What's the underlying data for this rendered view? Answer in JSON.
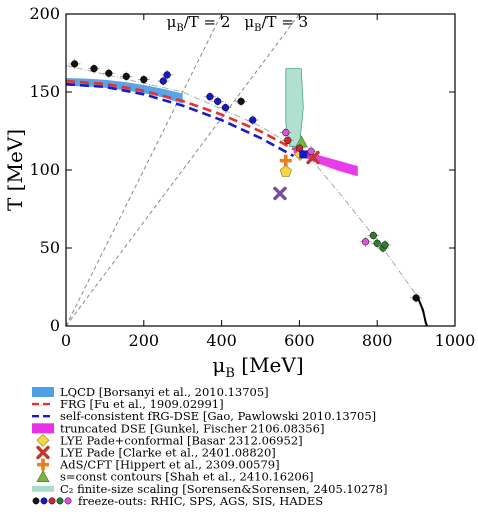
{
  "chart_data": {
    "type": "scatter",
    "xlabel_main": "μ",
    "xlabel_sub": "B",
    "xlabel_unit": " [MeV]",
    "ylabel": "T [MeV]",
    "xlim": [
      0,
      1000
    ],
    "ylim": [
      0,
      200
    ],
    "xticks": [
      "0",
      "200",
      "400",
      "600",
      "800",
      "1000"
    ],
    "yticks": [
      "0",
      "50",
      "100",
      "150",
      "200"
    ],
    "guide_lines": [
      {
        "main": "μ",
        "sub": "B",
        "rest": "/T = 2",
        "ratio": 2
      },
      {
        "main": "μ",
        "sub": "B",
        "rest": "/T = 3",
        "ratio": 3
      }
    ],
    "series": [
      {
        "name": "LQCD [Borsanyi et al., 2010.13705]",
        "kind": "band",
        "color": "#4f9fe8",
        "upper": [
          [
            0,
            159
          ],
          [
            50,
            158.6
          ],
          [
            100,
            157.8
          ],
          [
            150,
            156.4
          ],
          [
            200,
            154.5
          ],
          [
            250,
            152
          ],
          [
            300,
            149
          ]
        ],
        "lower": [
          [
            0,
            154
          ],
          [
            50,
            153.6
          ],
          [
            100,
            152.7
          ],
          [
            150,
            151.2
          ],
          [
            200,
            149.2
          ],
          [
            250,
            146.5
          ],
          [
            300,
            142.5
          ]
        ]
      },
      {
        "name": "FRG [Fu et al., 1909.02991]",
        "kind": "line",
        "color": "#e8312b",
        "dash": "9,5",
        "points": [
          [
            0,
            157
          ],
          [
            100,
            155.2
          ],
          [
            200,
            150.8
          ],
          [
            300,
            144.2
          ],
          [
            400,
            135.5
          ],
          [
            500,
            124.8
          ],
          [
            600,
            111.5
          ],
          [
            635,
            107
          ]
        ]
      },
      {
        "name": "self-consistent fRG-DSE [Gao, Pawlowski 2010.13705]",
        "kind": "line",
        "color": "#1a1acc",
        "dash": "9,5",
        "points": [
          [
            0,
            155
          ],
          [
            100,
            153.3
          ],
          [
            200,
            148.5
          ],
          [
            300,
            141.3
          ],
          [
            400,
            132
          ],
          [
            500,
            120.5
          ],
          [
            585,
            109
          ]
        ]
      },
      {
        "name": "truncated DSE [Gunkel, Fischer 2106.08356]",
        "kind": "band",
        "color": "#e830e8",
        "upper": [
          [
            585,
            115
          ],
          [
            650,
            109.5
          ],
          [
            700,
            106
          ],
          [
            750,
            102.5
          ]
        ],
        "lower": [
          [
            585,
            111
          ],
          [
            650,
            104
          ],
          [
            700,
            99.5
          ],
          [
            750,
            96
          ]
        ]
      },
      {
        "name": "LYE Pade+conformal [Basar 2312.06952]",
        "kind": "marker",
        "shape": "diamond",
        "color": "#f5d742",
        "points": [
          [
            602,
            110
          ]
        ]
      },
      {
        "name": "LYE Pade [Clarke et al., 2401.08820]",
        "kind": "marker",
        "shape": "x",
        "color": "#c0392b",
        "points": [
          [
            635,
            108
          ]
        ]
      },
      {
        "name": "AdS/CFT [Hippert et al., 2309.00579]",
        "kind": "marker",
        "shape": "plus",
        "color": "#e67e22",
        "points": [
          [
            565,
            106
          ]
        ]
      },
      {
        "name": "s=const contours [Shah et al., 2410.16206]",
        "kind": "marker",
        "shape": "triangle",
        "color": "#7cb342",
        "points": [
          [
            605,
            118
          ]
        ]
      },
      {
        "name": "C₂ finite-size scaling [Sorensen&Sorensen, 2405.10278]",
        "kind": "region",
        "color": "#6fc6a8",
        "points": [
          [
            565,
            165
          ],
          [
            605,
            165
          ],
          [
            610,
            140
          ],
          [
            600,
            115
          ],
          [
            575,
            115
          ],
          [
            565,
            130
          ]
        ]
      },
      {
        "name": "freeze-outs: RHIC, SPS, AGS, SIS, HADES",
        "kind": "freezeout",
        "groups": [
          {
            "color": "#111111",
            "points": [
              [
                22,
                168
              ],
              [
                72,
                165
              ],
              [
                110,
                162
              ],
              [
                155,
                160
              ],
              [
                200,
                158
              ],
              [
                450,
                144
              ],
              [
                900,
                18
              ]
            ]
          },
          {
            "color": "#1818c8",
            "points": [
              [
                250,
                157
              ],
              [
                260,
                161
              ],
              [
                370,
                147
              ],
              [
                390,
                144
              ],
              [
                410,
                140
              ],
              [
                480,
                132
              ]
            ]
          },
          {
            "color": "#d0282a",
            "points": [
              [
                570,
                119
              ],
              [
                600,
                114
              ]
            ]
          },
          {
            "color": "#2e7d32",
            "points": [
              [
                790,
                58
              ],
              [
                800,
                53
              ],
              [
                815,
                50
              ],
              [
                820,
                52
              ]
            ]
          },
          {
            "color": "#e050e0",
            "points": [
              [
                565,
                124
              ],
              [
                630,
                112
              ],
              [
                770,
                54
              ]
            ]
          }
        ]
      }
    ],
    "extra_markers": [
      {
        "shape": "x",
        "color": "#7a4d9b",
        "points": [
          [
            550,
            85
          ]
        ]
      },
      {
        "shape": "pentagon",
        "color": "#f5d742",
        "points": [
          [
            565,
            99
          ]
        ]
      },
      {
        "shape": "square",
        "color": "#1818c8",
        "points": [
          [
            610,
            110
          ]
        ]
      }
    ],
    "freezeout_trend": [
      [
        0,
        167
      ],
      [
        300,
        150
      ],
      [
        500,
        128
      ],
      [
        620,
        110
      ],
      [
        700,
        86
      ],
      [
        800,
        55
      ],
      [
        900,
        20
      ],
      [
        930,
        0
      ]
    ],
    "nuclear_curve": [
      [
        905,
        18
      ],
      [
        918,
        10
      ],
      [
        925,
        2
      ],
      [
        928,
        0
      ]
    ]
  }
}
